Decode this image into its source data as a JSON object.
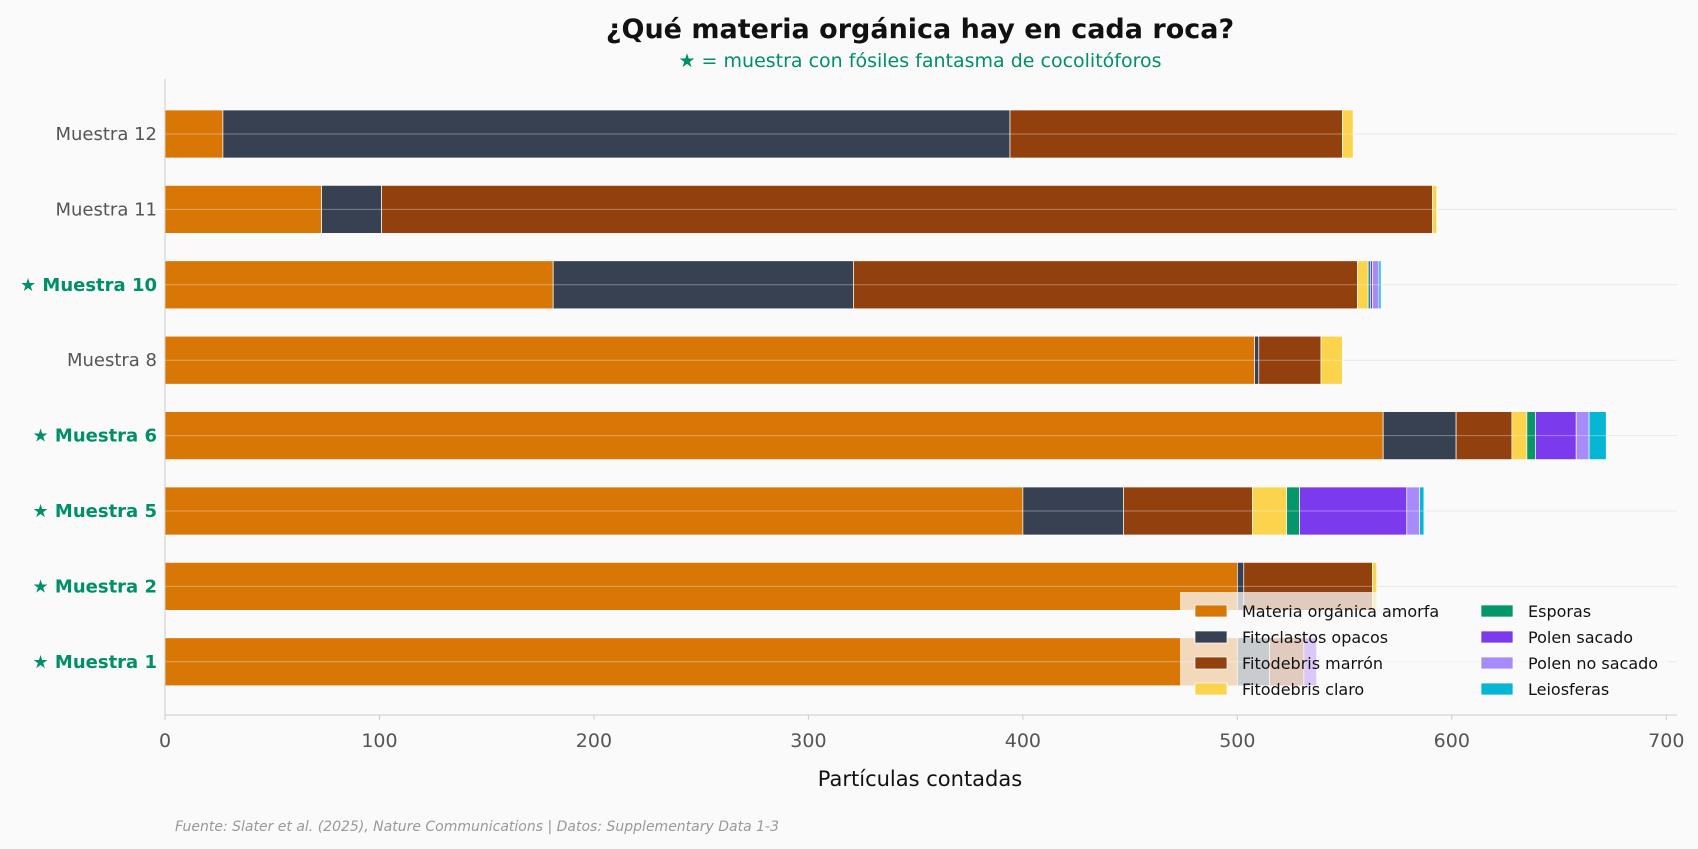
{
  "chart_data": {
    "type": "bar",
    "orientation": "horizontal",
    "stacked": true,
    "title": "¿Qué materia orgánica hay en cada roca?",
    "subtitle": "★ = muestra con fósiles fantasma de cocolitóforos",
    "xlabel": "Partículas contadas",
    "source": "Fuente: Slater et al. (2025), Nature Communications | Datos: Supplementary Data 1-3",
    "xlim": [
      0,
      705
    ],
    "xticks": [
      "0",
      "100",
      "200",
      "300",
      "400",
      "500",
      "600",
      "700"
    ],
    "grid": "y",
    "legend_position": "lower-right",
    "categories": [
      {
        "label": "Muestra 12",
        "highlighted": false
      },
      {
        "label": "Muestra 11",
        "highlighted": false
      },
      {
        "label": "★ Muestra 10",
        "highlighted": true
      },
      {
        "label": "Muestra 8",
        "highlighted": false
      },
      {
        "label": "★ Muestra 6",
        "highlighted": true
      },
      {
        "label": "★ Muestra 5",
        "highlighted": true
      },
      {
        "label": "★ Muestra 2",
        "highlighted": true
      },
      {
        "label": "★ Muestra 1",
        "highlighted": true
      }
    ],
    "series": [
      {
        "name": "Materia orgánica amorfa",
        "color": "#d97706",
        "values": [
          27,
          73,
          181,
          508,
          568,
          400,
          500,
          500
        ]
      },
      {
        "name": "Fitoclastos opacos",
        "color": "#374151",
        "values": [
          367,
          28,
          140,
          2,
          34,
          47,
          3,
          15
        ]
      },
      {
        "name": "Fitodebris marrón",
        "color": "#92400e",
        "values": [
          155,
          490,
          235,
          29,
          26,
          60,
          60,
          16
        ]
      },
      {
        "name": "Fitodebris claro",
        "color": "#fcd34d",
        "values": [
          5,
          2,
          5,
          10,
          7,
          16,
          2,
          0
        ]
      },
      {
        "name": "Esporas",
        "color": "#059669",
        "values": [
          0,
          0,
          1,
          0,
          4,
          6,
          0,
          0
        ]
      },
      {
        "name": "Polen sacado",
        "color": "#7c3aed",
        "values": [
          0,
          0,
          1,
          0,
          19,
          50,
          0,
          6
        ]
      },
      {
        "name": "Polen no sacado",
        "color": "#a78bfa",
        "values": [
          0,
          0,
          3,
          0,
          6,
          6,
          0,
          0
        ]
      },
      {
        "name": "Leiosferas",
        "color": "#06b6d4",
        "values": [
          0,
          0,
          1,
          0,
          8,
          2,
          0,
          0
        ]
      }
    ]
  }
}
